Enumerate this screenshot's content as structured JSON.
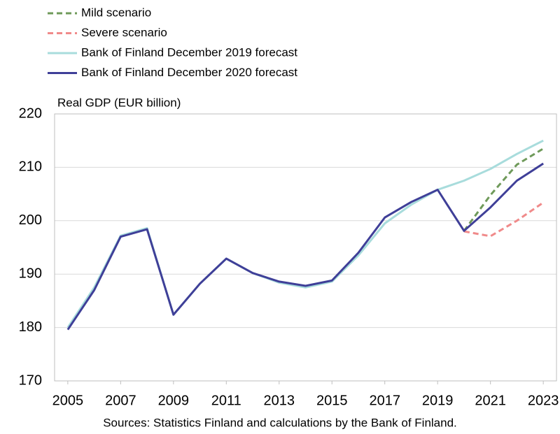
{
  "chart_data": {
    "type": "line",
    "y_axis_label": "Real GDP (EUR billion)",
    "source": "Sources: Statistics Finland and calculations by the Bank of Finland.",
    "x": [
      2005,
      2006,
      2007,
      2008,
      2009,
      2010,
      2011,
      2012,
      2013,
      2014,
      2015,
      2016,
      2017,
      2018,
      2019,
      2020,
      2021,
      2022,
      2023
    ],
    "xlim": [
      2004.5,
      2023.5
    ],
    "xticks": [
      2005,
      2007,
      2009,
      2011,
      2013,
      2015,
      2017,
      2019,
      2021,
      2023
    ],
    "ylim": [
      170,
      220
    ],
    "yticks": [
      170,
      180,
      190,
      200,
      210,
      220
    ],
    "grid": true,
    "series": [
      {
        "name": "Mild scenario",
        "color": "#6f9a5a",
        "dashed": true,
        "values": [
          null,
          null,
          null,
          null,
          null,
          null,
          null,
          null,
          null,
          null,
          null,
          null,
          null,
          null,
          null,
          198.1,
          204.8,
          210.5,
          213.5
        ]
      },
      {
        "name": "Severe scenario",
        "color": "#f08a8a",
        "dashed": true,
        "values": [
          null,
          null,
          null,
          null,
          null,
          null,
          null,
          null,
          null,
          null,
          null,
          null,
          null,
          null,
          null,
          198,
          197.1,
          200,
          203.4
        ]
      },
      {
        "name": "Bank of Finland December 2019 forecast",
        "color": "#a8dcdc",
        "dashed": false,
        "values": [
          180,
          187.5,
          197.2,
          198.6,
          182.4,
          188.2,
          192.9,
          190.2,
          188.4,
          187.5,
          188.6,
          193.5,
          199.5,
          203,
          205.8,
          207.5,
          209.7,
          212.5,
          215
        ]
      },
      {
        "name": "Bank of Finland December 2020 forecast",
        "color": "#3f3f98",
        "dashed": false,
        "values": [
          179.6,
          187,
          197,
          198.4,
          182.4,
          188.2,
          192.9,
          190.2,
          188.6,
          187.8,
          188.8,
          194,
          200.6,
          203.5,
          205.8,
          198.1,
          202.5,
          207.5,
          210.7
        ]
      }
    ]
  }
}
